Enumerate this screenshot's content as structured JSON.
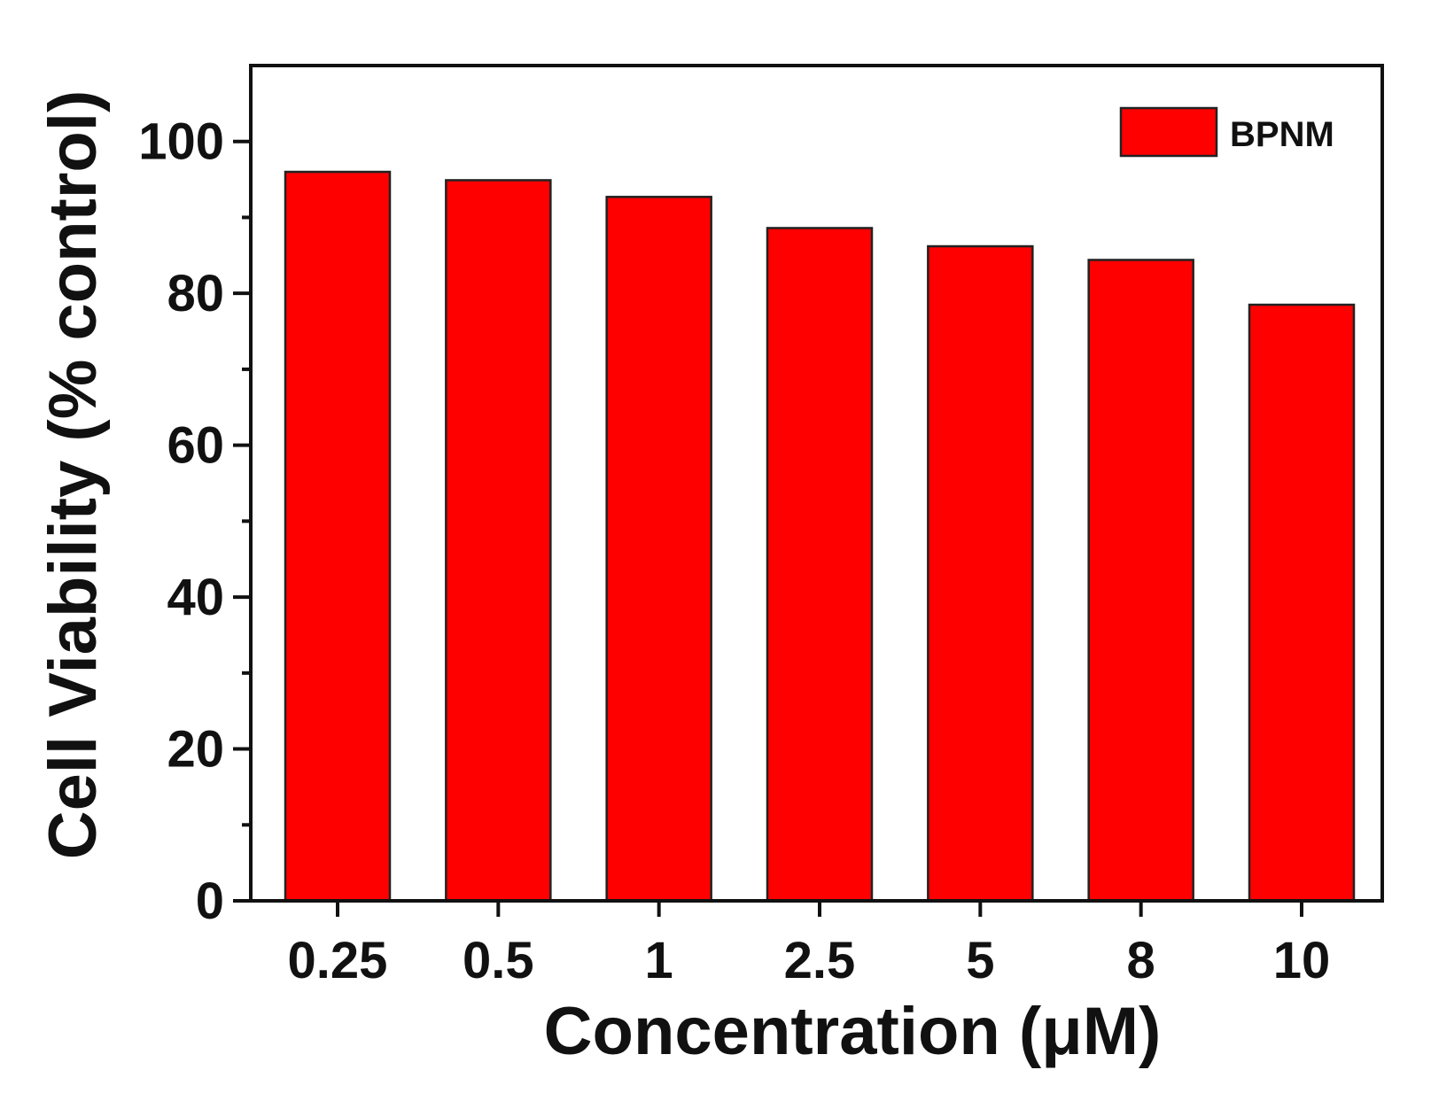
{
  "chart_data": {
    "type": "bar",
    "categories": [
      "0.25",
      "0.5",
      "1",
      "2.5",
      "5",
      "8",
      "10"
    ],
    "series": [
      {
        "name": "BPNM",
        "values": [
          96.0,
          94.9,
          92.7,
          88.6,
          86.2,
          84.4,
          78.5
        ],
        "color": "#ff0000"
      }
    ],
    "xlabel": "Concentration (μM)",
    "ylabel": "Cell Viability (% control)",
    "ylim": [
      0,
      110
    ],
    "yticks": [
      "0",
      "20",
      "40",
      "60",
      "80",
      "100"
    ],
    "grid": false,
    "legend_position": "top-right",
    "bar_edge_color": "#222222"
  }
}
